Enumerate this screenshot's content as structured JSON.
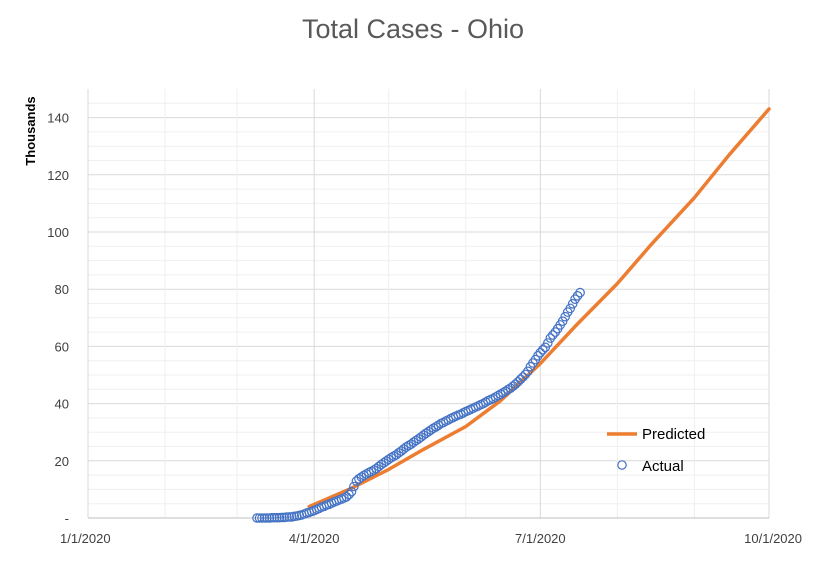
{
  "chart_data": {
    "type": "line",
    "title": "Total Cases - Ohio",
    "ylabel": "Thousands",
    "xlabel": "",
    "x_ticks": [
      "1/1/2020",
      "4/1/2020",
      "7/1/2020",
      "10/1/2020"
    ],
    "y_ticks": [
      "-",
      "20",
      "40",
      "60",
      "80",
      "100",
      "120",
      "140"
    ],
    "xlim": [
      "2020-01-01",
      "2020-10-01"
    ],
    "ylim": [
      0,
      150
    ],
    "grid": true,
    "legend_position": "right",
    "series": [
      {
        "name": "Predicted",
        "kind": "line",
        "color": "#ED7D31",
        "x": [
          "2020-03-30",
          "2020-04-15",
          "2020-05-01",
          "2020-05-15",
          "2020-06-01",
          "2020-06-15",
          "2020-07-01",
          "2020-07-15",
          "2020-08-01",
          "2020-08-15",
          "2020-09-01",
          "2020-09-15",
          "2020-10-01"
        ],
        "y": [
          4,
          10,
          17,
          24,
          32,
          41,
          54,
          67,
          82,
          96,
          112,
          127,
          143
        ]
      },
      {
        "name": "Actual",
        "kind": "scatter",
        "color": "#4472C4",
        "x": [
          "2020-03-09",
          "2020-03-10",
          "2020-03-11",
          "2020-03-12",
          "2020-03-13",
          "2020-03-14",
          "2020-03-15",
          "2020-03-16",
          "2020-03-17",
          "2020-03-18",
          "2020-03-19",
          "2020-03-20",
          "2020-03-21",
          "2020-03-22",
          "2020-03-23",
          "2020-03-24",
          "2020-03-25",
          "2020-03-26",
          "2020-03-27",
          "2020-03-28",
          "2020-03-29",
          "2020-03-30",
          "2020-03-31",
          "2020-04-01",
          "2020-04-02",
          "2020-04-03",
          "2020-04-04",
          "2020-04-05",
          "2020-04-06",
          "2020-04-07",
          "2020-04-08",
          "2020-04-09",
          "2020-04-10",
          "2020-04-11",
          "2020-04-12",
          "2020-04-13",
          "2020-04-14",
          "2020-04-15",
          "2020-04-16",
          "2020-04-17",
          "2020-04-18",
          "2020-04-19",
          "2020-04-20",
          "2020-04-21",
          "2020-04-22",
          "2020-04-23",
          "2020-04-24",
          "2020-04-25",
          "2020-04-26",
          "2020-04-27",
          "2020-04-28",
          "2020-04-29",
          "2020-04-30",
          "2020-05-01",
          "2020-05-02",
          "2020-05-03",
          "2020-05-04",
          "2020-05-05",
          "2020-05-06",
          "2020-05-07",
          "2020-05-08",
          "2020-05-09",
          "2020-05-10",
          "2020-05-11",
          "2020-05-12",
          "2020-05-13",
          "2020-05-14",
          "2020-05-15",
          "2020-05-16",
          "2020-05-17",
          "2020-05-18",
          "2020-05-19",
          "2020-05-20",
          "2020-05-21",
          "2020-05-22",
          "2020-05-23",
          "2020-05-24",
          "2020-05-25",
          "2020-05-26",
          "2020-05-27",
          "2020-05-28",
          "2020-05-29",
          "2020-05-30",
          "2020-05-31",
          "2020-06-01",
          "2020-06-02",
          "2020-06-03",
          "2020-06-04",
          "2020-06-05",
          "2020-06-06",
          "2020-06-07",
          "2020-06-08",
          "2020-06-09",
          "2020-06-10",
          "2020-06-11",
          "2020-06-12",
          "2020-06-13",
          "2020-06-14",
          "2020-06-15",
          "2020-06-16",
          "2020-06-17",
          "2020-06-18",
          "2020-06-19",
          "2020-06-20",
          "2020-06-21",
          "2020-06-22",
          "2020-06-23",
          "2020-06-24",
          "2020-06-25",
          "2020-06-26",
          "2020-06-27",
          "2020-06-28",
          "2020-06-29",
          "2020-06-30",
          "2020-07-01",
          "2020-07-02",
          "2020-07-03",
          "2020-07-04",
          "2020-07-05",
          "2020-07-06",
          "2020-07-07",
          "2020-07-08",
          "2020-07-09",
          "2020-07-10",
          "2020-07-11",
          "2020-07-12",
          "2020-07-13",
          "2020-07-14",
          "2020-07-15",
          "2020-07-16",
          "2020-07-17"
        ],
        "y": [
          0.0,
          0.0,
          0.0,
          0.0,
          0.0,
          0.0,
          0.1,
          0.1,
          0.1,
          0.1,
          0.2,
          0.2,
          0.3,
          0.4,
          0.4,
          0.6,
          0.7,
          0.9,
          1.1,
          1.4,
          1.7,
          2.0,
          2.3,
          2.6,
          3.0,
          3.4,
          3.8,
          4.1,
          4.5,
          4.8,
          5.2,
          5.6,
          5.9,
          6.3,
          6.6,
          7.0,
          7.4,
          8.2,
          9.2,
          11.0,
          12.9,
          13.7,
          14.3,
          14.9,
          15.4,
          15.9,
          16.3,
          16.8,
          17.3,
          18.0,
          18.7,
          19.3,
          19.9,
          20.5,
          21.1,
          21.6,
          22.1,
          22.8,
          23.4,
          24.1,
          24.8,
          25.3,
          25.8,
          26.5,
          27.1,
          27.7,
          28.3,
          29.0,
          29.6,
          30.2,
          30.8,
          31.4,
          31.9,
          32.4,
          33.0,
          33.4,
          33.9,
          34.3,
          34.8,
          35.2,
          35.6,
          36.0,
          36.3,
          36.8,
          37.2,
          37.6,
          38.0,
          38.4,
          38.8,
          39.2,
          39.6,
          40.0,
          40.5,
          41.0,
          41.4,
          41.8,
          42.3,
          42.8,
          43.3,
          43.8,
          44.3,
          44.9,
          45.4,
          46.1,
          46.8,
          47.6,
          48.5,
          49.3,
          50.2,
          51.3,
          52.9,
          54.2,
          55.4,
          56.7,
          57.8,
          58.8,
          59.7,
          61.2,
          62.9,
          64.0,
          65.0,
          66.2,
          67.5,
          68.8,
          70.4,
          72.0,
          73.3,
          74.9,
          76.5,
          77.7,
          78.8
        ]
      }
    ]
  }
}
